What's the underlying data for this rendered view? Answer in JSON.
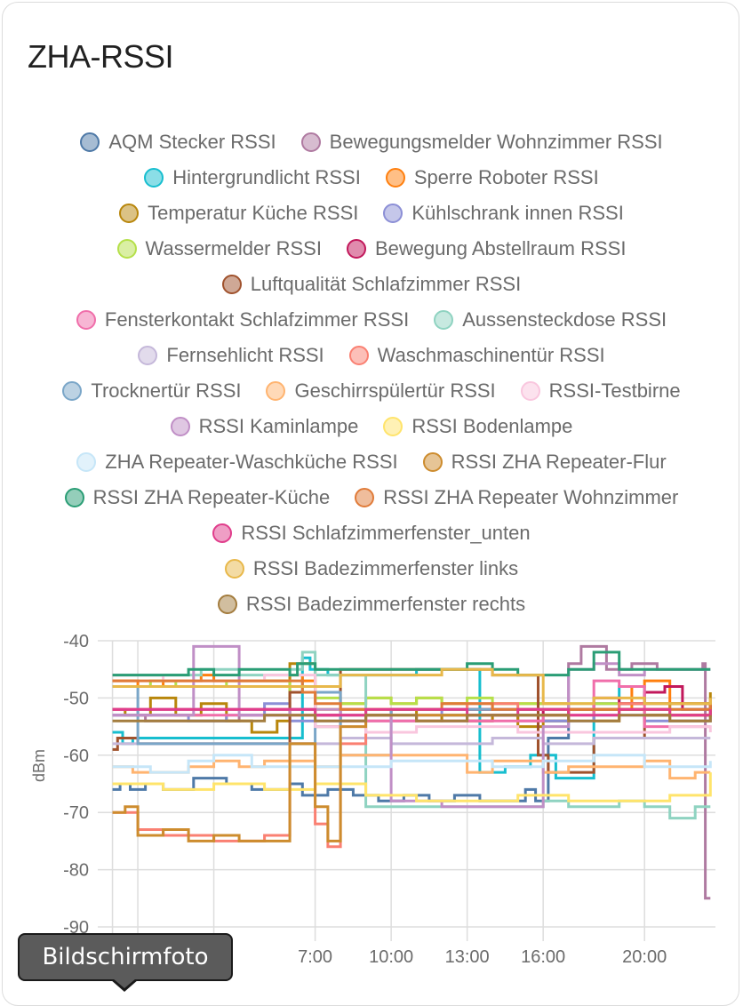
{
  "card": {
    "title": "ZHA-RSSI"
  },
  "tooltip": {
    "label": "Bildschirmfoto"
  },
  "legend_rows": [
    [
      0,
      1
    ],
    [
      2,
      3
    ],
    [
      4,
      5
    ],
    [
      6,
      7
    ],
    [
      8
    ],
    [
      9,
      10
    ],
    [
      11,
      12
    ],
    [
      13,
      14,
      15
    ],
    [
      16,
      17
    ],
    [
      18,
      19
    ],
    [
      20,
      21
    ],
    [
      22
    ],
    [
      23
    ],
    [
      24
    ]
  ],
  "chart_data": {
    "type": "line",
    "step": true,
    "title": "ZHA-RSSI",
    "xlabel": "",
    "ylabel": "dBm",
    "ylim": [
      -90,
      -40
    ],
    "yticks": [
      -40,
      -50,
      -60,
      -70,
      -80,
      -90
    ],
    "xlim_hours": [
      -1.3,
      22.8
    ],
    "xticks": [
      {
        "hour": 7,
        "label": "7:00"
      },
      {
        "hour": 10,
        "label": "10:00"
      },
      {
        "hour": 13,
        "label": "13:00"
      },
      {
        "hour": 16,
        "label": "16:00"
      },
      {
        "hour": 20,
        "label": "20:00"
      }
    ],
    "grid": true,
    "legend": "top",
    "series": [
      {
        "name": "AQM Stecker RSSI",
        "color": "#4e79a7",
        "x": [
          -1.0,
          -0.7,
          -0.3,
          0.3,
          1.0,
          2.2,
          3.5,
          4.5,
          6.0,
          6.5,
          7.5,
          8.5,
          9.5,
          10.5,
          11.5,
          12.5,
          13.5,
          14.5,
          15.3,
          15.7,
          16.2,
          17.0,
          18.0,
          22.6
        ],
        "y": [
          -66,
          -65,
          -66,
          -65,
          -66,
          -64,
          -65,
          -66,
          -65,
          -67,
          -66,
          -67,
          -68,
          -67,
          -68,
          -67,
          -68,
          -68,
          -66,
          -68,
          -57,
          -52,
          -51,
          -51
        ]
      },
      {
        "name": "Bewegungsmelder Wohnzimmer RSSI",
        "color": "#af7aa1",
        "x": [
          -1.0,
          0.3,
          0.4,
          2.0,
          4.0,
          6.0,
          7.0,
          8.0,
          9.0,
          10.0,
          11.0,
          12.0,
          13.0,
          14.0,
          15.0,
          16.0,
          17.0,
          17.5,
          18.5,
          19.5,
          20.5,
          22.3,
          22.4,
          22.6
        ],
        "y": [
          -53,
          -54,
          -54,
          -54,
          -53,
          -53,
          -54,
          -53,
          -54,
          -54,
          -53,
          -54,
          -54,
          -53,
          -54,
          -54,
          -44,
          -41,
          -45,
          -44,
          -45,
          -44,
          -85,
          -85
        ]
      },
      {
        "name": "Hintergrundlicht RSSI",
        "color": "#17becf",
        "x": [
          -1.0,
          -0.6,
          -0.2,
          6.0,
          6.5,
          6.8,
          7.5,
          8.5,
          11.0,
          12.0,
          13.0,
          13.5,
          14.5,
          15.5,
          16.5,
          18.0,
          19.0,
          20.0,
          21.0,
          22.6
        ],
        "y": [
          -56,
          -58,
          -57,
          -57,
          -43,
          -45,
          -46,
          -46,
          -45,
          -45,
          -45,
          -63,
          -62,
          -60,
          -64,
          -52,
          -48,
          -51,
          -51,
          -51
        ]
      },
      {
        "name": "Sperre Roboter RSSI",
        "color": "#ff7f0e",
        "x": [
          -1.0,
          0.0,
          1.0,
          2.5,
          3.0,
          4.0,
          6.0,
          6.5,
          7.0,
          8.0,
          9.0,
          10.0,
          11.0,
          12.0,
          13.0,
          14.0,
          15.0,
          16.0,
          17.0,
          19.5,
          20.0,
          21.0,
          22.6
        ],
        "y": [
          -47,
          -48,
          -47,
          -46,
          -47,
          -47,
          -46,
          -47,
          -52,
          -51,
          -50,
          -51,
          -50,
          -51,
          -52,
          -51,
          -51,
          -51,
          -52,
          -48,
          -47,
          -53,
          -51
        ]
      },
      {
        "name": "Temperatur Küche RSSI",
        "color": "#b8860b",
        "x": [
          -1.0,
          -0.5,
          0.5,
          1.5,
          2.5,
          3.5,
          4.5,
          5.5,
          6.0,
          7.0,
          8.0,
          9.0,
          10.0,
          11.0,
          12.0,
          13.0,
          14.0,
          15.0,
          16.0,
          17.0,
          18.0,
          19.0,
          20.0,
          21.0,
          22.6
        ],
        "y": [
          -52,
          -53,
          -50,
          -53,
          -51,
          -54,
          -56,
          -54,
          -44,
          -53,
          -54,
          -53,
          -52,
          -54,
          -53,
          -54,
          -53,
          -55,
          -54,
          -52,
          -54,
          -52,
          -53,
          -54,
          -49
        ]
      },
      {
        "name": "Kühlschrank innen RSSI",
        "color": "#8c8fd6",
        "x": [
          -1.0,
          0.5,
          2.0,
          3.5,
          5.0,
          6.0,
          7.0,
          8.0,
          9.0,
          10.0,
          12.0,
          14.0,
          16.0,
          18.0,
          20.0,
          22.6
        ],
        "y": [
          -53,
          -53,
          -54,
          -53,
          -51,
          -54,
          -53,
          -54,
          -53,
          -52,
          -53,
          -53,
          -54,
          -53,
          -54,
          -53
        ]
      },
      {
        "name": "Wassermelder RSSI",
        "color": "#b5e04a",
        "x": [
          -1.0,
          0.5,
          1.5,
          3.5,
          6.0,
          7.0,
          8.0,
          9.0,
          10.0,
          11.0,
          12.0,
          13.0,
          14.0,
          15.0,
          16.0,
          17.0,
          18.0,
          19.0,
          20.0,
          22.6
        ],
        "y": [
          -48,
          -47,
          -48,
          -47,
          -49,
          -50,
          -51,
          -50,
          -51,
          -50,
          -51,
          -50,
          -51,
          -51,
          -51,
          -51,
          -51,
          -51,
          -51,
          -51
        ]
      },
      {
        "name": "Bewegung Abstellraum RSSI",
        "color": "#c2185b",
        "x": [
          -1.0,
          1.0,
          3.0,
          5.0,
          7.0,
          8.0,
          9.0,
          10.0,
          12.0,
          14.0,
          16.0,
          17.0,
          18.0,
          19.0,
          20.0,
          20.8,
          21.5,
          22.6
        ],
        "y": [
          -52,
          -52,
          -52,
          -52,
          -53,
          -52,
          -53,
          -52,
          -52,
          -52,
          -53,
          -52,
          -50,
          -51,
          -49,
          -48,
          -52,
          -51
        ]
      },
      {
        "name": "Luftqualität Schlafzimmer RSSI",
        "color": "#a0522d",
        "x": [
          -1.0,
          -0.8,
          -0.4,
          0.0,
          6.0,
          7.0,
          8.0,
          10.0,
          12.0,
          14.0,
          15.8,
          16.2,
          18.0,
          20.0,
          22.6
        ],
        "y": [
          -59,
          -57,
          -57,
          -58,
          -49,
          -55,
          -45,
          -45,
          -45,
          -46,
          -60,
          -63,
          -57,
          -53,
          -51
        ]
      },
      {
        "name": "Fensterkontakt Schlafzimmer RSSI",
        "color": "#f06eaa",
        "x": [
          -1.0,
          0.0,
          2.0,
          4.0,
          6.0,
          8.0,
          10.0,
          12.0,
          14.0,
          16.0,
          18.0,
          19.0,
          20.0,
          22.6
        ],
        "y": [
          -52,
          -53,
          -53,
          -53,
          -53,
          -54,
          -54,
          -54,
          -54,
          -53,
          -47,
          -48,
          -55,
          -55
        ]
      },
      {
        "name": "Aussensteckdose RSSI",
        "color": "#8fd3c1",
        "x": [
          -1.0,
          1.0,
          2.5,
          4.0,
          6.0,
          6.5,
          7.0,
          9.0,
          11.0,
          13.0,
          15.0,
          16.0,
          17.0,
          18.0,
          19.0,
          20.0,
          21.0,
          22.0,
          22.6
        ],
        "y": [
          -46,
          -46,
          -45,
          -46,
          -45,
          -42,
          -46,
          -69,
          -69,
          -69,
          -69,
          -68,
          -69,
          -69,
          -68,
          -69,
          -71,
          -69,
          -69
        ]
      },
      {
        "name": "Fernsehlicht RSSI",
        "color": "#c5b8da",
        "x": [
          -1.0,
          1.0,
          3.0,
          5.0,
          7.0,
          8.0,
          10.0,
          12.0,
          14.0,
          16.0,
          18.0,
          20.0,
          22.6
        ],
        "y": [
          -58,
          -58,
          -58,
          -58,
          -58,
          -57,
          -58,
          -58,
          -57,
          -58,
          -57,
          -57,
          -57
        ]
      },
      {
        "name": "Waschmaschinentür RSSI",
        "color": "#fa8072",
        "x": [
          -1.0,
          0.0,
          1.0,
          3.0,
          5.0,
          6.0,
          7.0,
          7.5,
          8.0,
          9.0,
          11.0,
          13.0,
          15.0,
          17.0,
          19.0,
          22.6
        ],
        "y": [
          -70,
          -73,
          -74,
          -75,
          -74,
          -58,
          -72,
          -76,
          -58,
          -52,
          -52,
          -51,
          -52,
          -52,
          -51,
          -51
        ]
      },
      {
        "name": "Trocknertür RSSI",
        "color": "#7aa6c8",
        "x": [
          -1.0,
          0.0,
          2.0,
          4.0,
          6.0,
          7.0,
          8.0,
          9.0,
          10.0,
          12.0,
          14.0,
          16.0,
          18.0,
          20.0,
          22.6
        ],
        "y": [
          -48,
          -58,
          -58,
          -58,
          -58,
          -49,
          -60,
          -60,
          -52,
          -52,
          -52,
          -52,
          -52,
          -52,
          -52
        ]
      },
      {
        "name": "Geschirrspülertür RSSI",
        "color": "#ffb470",
        "x": [
          -1.0,
          -0.2,
          0.5,
          2.0,
          3.0,
          4.0,
          5.0,
          6.0,
          7.0,
          8.0,
          10.0,
          12.0,
          13.0,
          14.0,
          16.0,
          17.0,
          18.0,
          20.0,
          21.0,
          22.0,
          22.6
        ],
        "y": [
          -62,
          -63,
          -63,
          -62,
          -61,
          -62,
          -61,
          -61,
          -62,
          -60,
          -60,
          -60,
          -63,
          -61,
          -63,
          -62,
          -62,
          -61,
          -64,
          -63,
          -63
        ]
      },
      {
        "name": "RSSI-Testbirne",
        "color": "#f9c6de",
        "x": [
          -1.0,
          1.0,
          3.0,
          5.0,
          7.0,
          9.0,
          11.0,
          13.0,
          15.0,
          17.0,
          19.0,
          21.0,
          22.6
        ],
        "y": [
          -46,
          -47,
          -47,
          -46,
          -55,
          -56,
          -55,
          -55,
          -56,
          -56,
          -56,
          -55,
          -56
        ]
      },
      {
        "name": "RSSI Kaminlampe",
        "color": "#c08fc6",
        "x": [
          -1.0,
          2.0,
          2.2,
          4.0,
          6.0,
          8.0,
          10.0,
          12.0,
          14.0,
          16.0,
          17.0,
          18.0,
          19.0,
          20.0,
          21.0,
          22.6
        ],
        "y": [
          -53,
          -53,
          -41,
          -53,
          -52,
          -53,
          -68,
          -69,
          -69,
          -55,
          -45,
          -44,
          -46,
          -45,
          -45,
          -45
        ]
      },
      {
        "name": "RSSI Bodenlampe",
        "color": "#ffe46b",
        "x": [
          -1.0,
          1.0,
          3.0,
          5.0,
          7.0,
          9.0,
          11.0,
          13.0,
          15.0,
          17.0,
          19.0,
          21.0,
          22.6
        ],
        "y": [
          -65,
          -66,
          -65,
          -66,
          -65,
          -67,
          -68,
          -68,
          -67,
          -68,
          -68,
          -67,
          -63
        ]
      },
      {
        "name": "ZHA Repeater-Waschküche RSSI",
        "color": "#c6e6f8",
        "x": [
          -1.0,
          0.5,
          2.0,
          3.0,
          4.5,
          6.0,
          7.0,
          8.0,
          10.0,
          12.0,
          14.0,
          16.0,
          18.0,
          20.0,
          22.6
        ],
        "y": [
          -62,
          -63,
          -61,
          -60,
          -62,
          -62,
          -62,
          -62,
          -61,
          -61,
          -62,
          -61,
          -60,
          -62,
          -61
        ]
      },
      {
        "name": "RSSI ZHA Repeater-Flur",
        "color": "#cd8c2e",
        "x": [
          -1.0,
          -0.5,
          0.0,
          1.0,
          2.0,
          3.0,
          4.0,
          5.0,
          6.0,
          7.0,
          7.5,
          8.0,
          9.0,
          11.0,
          13.0,
          15.0,
          17.0,
          19.0,
          21.0,
          22.6
        ],
        "y": [
          -70,
          -69,
          -74,
          -73,
          -75,
          -74,
          -75,
          -75,
          -58,
          -69,
          -75,
          -55,
          -53,
          -53,
          -53,
          -53,
          -52,
          -52,
          -51,
          -50
        ]
      },
      {
        "name": "RSSI ZHA Repeater-Küche",
        "color": "#2a9d75",
        "x": [
          -1.0,
          2.0,
          3.0,
          4.0,
          6.0,
          6.3,
          7.0,
          8.0,
          10.0,
          12.0,
          13.0,
          14.0,
          15.0,
          16.0,
          17.0,
          18.0,
          19.0,
          20.0,
          22.6
        ],
        "y": [
          -46,
          -45,
          -46,
          -45,
          -46,
          -44,
          -45,
          -45,
          -45,
          -45,
          -44,
          -45,
          -46,
          -46,
          -45,
          -42,
          -45,
          -45,
          -45
        ]
      },
      {
        "name": "RSSI ZHA Repeater Wohnzimmer",
        "color": "#e07b39",
        "x": [
          -1.0,
          1.0,
          3.0,
          5.0,
          6.5,
          7.0,
          8.0,
          10.0,
          12.0,
          14.0,
          16.0,
          18.0,
          20.0,
          22.6
        ],
        "y": [
          -47,
          -47,
          -47,
          -47,
          -49,
          -51,
          -52,
          -52,
          -51,
          -52,
          -52,
          -52,
          -52,
          -51
        ]
      },
      {
        "name": "RSSI Schlafzimmerfenster_unten",
        "color": "#e03d8b",
        "x": [
          -1.0,
          1.0,
          3.0,
          5.0,
          7.0,
          9.0,
          11.0,
          13.0,
          15.0,
          17.0,
          19.0,
          21.0,
          22.6
        ],
        "y": [
          -52,
          -52,
          -52,
          -52,
          -53,
          -52,
          -52,
          -53,
          -52,
          -53,
          -52,
          -53,
          -52
        ]
      },
      {
        "name": "RSSI Badezimmerfenster links",
        "color": "#e8b84a",
        "x": [
          -1.0,
          2.0,
          4.0,
          6.0,
          8.0,
          10.0,
          12.0,
          14.0,
          16.0,
          18.0,
          20.0,
          22.6
        ],
        "y": [
          -48,
          -48,
          -48,
          -48,
          -46,
          -46,
          -45,
          -46,
          -51,
          -50,
          -51,
          -50
        ]
      },
      {
        "name": "RSSI Badezimmerfenster rechts",
        "color": "#a47d3f",
        "x": [
          -1.0,
          1.0,
          3.0,
          5.0,
          7.0,
          9.0,
          11.0,
          13.0,
          15.0,
          17.0,
          19.0,
          21.0,
          22.6
        ],
        "y": [
          -54,
          -54,
          -54,
          -53,
          -54,
          -53,
          -54,
          -53,
          -53,
          -54,
          -53,
          -54,
          -53
        ]
      }
    ]
  }
}
